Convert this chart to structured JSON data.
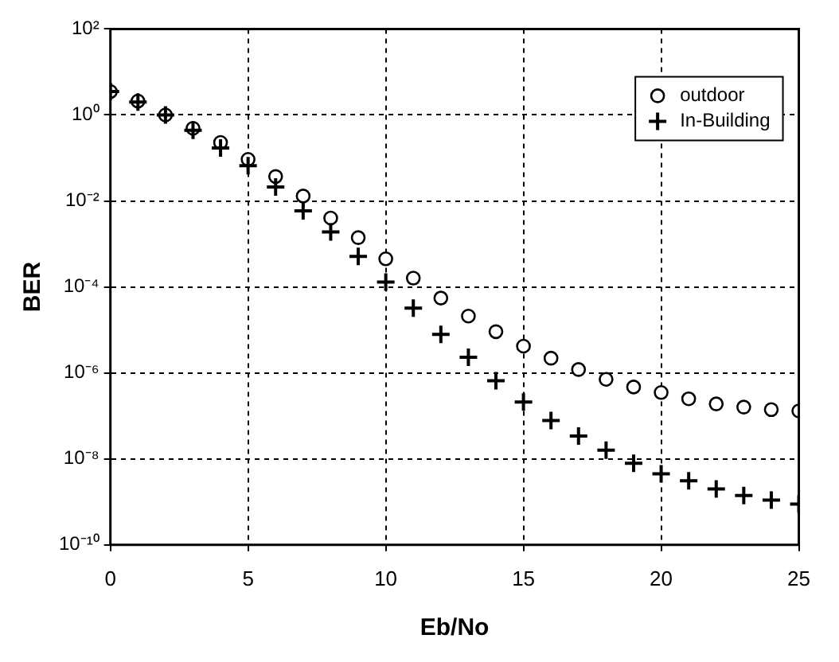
{
  "chart_data": {
    "type": "scatter",
    "xlabel": "Eb/No",
    "ylabel": "BER",
    "x": [
      0,
      1,
      2,
      3,
      4,
      5,
      6,
      7,
      8,
      9,
      10,
      11,
      12,
      13,
      14,
      15,
      16,
      17,
      18,
      19,
      20,
      21,
      22,
      23,
      24,
      25
    ],
    "series": [
      {
        "name": "outdoor",
        "color": "#000000",
        "marker": "circle",
        "values": [
          3.5,
          2.1,
          1.0,
          0.49,
          0.23,
          0.093,
          0.037,
          0.013,
          0.004,
          0.0014,
          0.00045,
          0.00016,
          5.5e-05,
          2.1e-05,
          9.1e-06,
          4.2e-06,
          2.2e-06,
          1.2e-06,
          7.1e-07,
          4.7e-07,
          3.5e-07,
          2.5e-07,
          1.9e-07,
          1.6e-07,
          1.4e-07,
          1.3e-07
        ]
      },
      {
        "name": "In-Building",
        "color": "#000000",
        "marker": "cross",
        "values": [
          3.5,
          2.0,
          1.0,
          0.44,
          0.17,
          0.066,
          0.021,
          0.0059,
          0.0019,
          0.00051,
          0.00013,
          3.2e-05,
          7.9e-06,
          2.3e-06,
          6.6e-07,
          2.1e-07,
          7.8e-08,
          3.4e-08,
          1.6e-08,
          7.9e-09,
          4.5e-09,
          3.1e-09,
          2e-09,
          1.4e-09,
          1.1e-09,
          8.9e-10
        ]
      }
    ],
    "log": "y",
    "xlim": [
      0,
      25
    ],
    "xticks": [
      0,
      5,
      10,
      15,
      20,
      25
    ],
    "ylim": [
      1e-10,
      100
    ],
    "yticks": [
      {
        "value": 100,
        "label": "10²"
      },
      {
        "value": 1,
        "label": "10⁰"
      },
      {
        "value": 0.01,
        "label": "10⁻²"
      },
      {
        "value": 0.0001,
        "label": "10⁻⁴"
      },
      {
        "value": 1e-06,
        "label": "10⁻⁶"
      },
      {
        "value": 1e-08,
        "label": "10⁻⁸"
      },
      {
        "value": 1e-10,
        "label": "10⁻¹⁰"
      }
    ],
    "grid": true,
    "legend": "top right"
  }
}
